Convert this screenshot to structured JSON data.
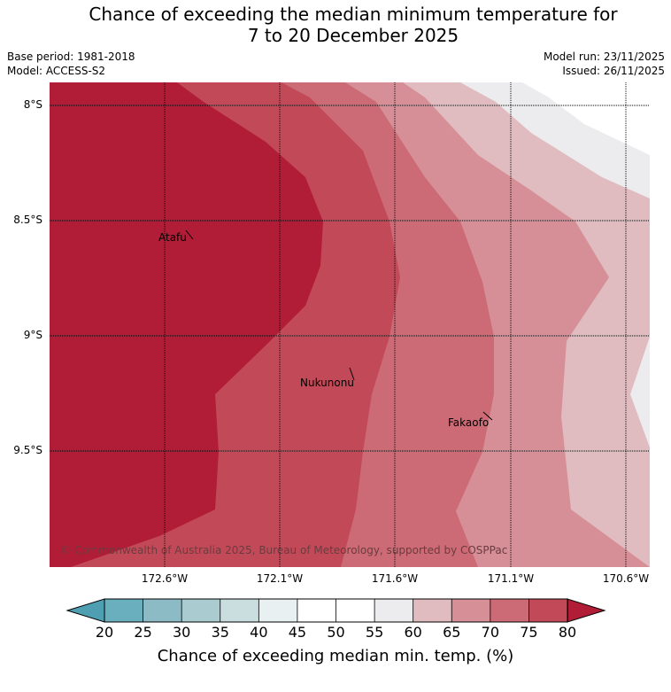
{
  "title": {
    "line1": "Chance of exceeding the median minimum temperature for",
    "line2": "7 to 20 December 2025"
  },
  "meta": {
    "base_period": "Base period: 1981-2018",
    "model": "Model: ACCESS-S2",
    "model_run": "Model run: 23/11/2025",
    "issued": "Issued: 26/11/2025"
  },
  "map": {
    "lat_labels": [
      "8°S",
      "8.5°S",
      "9°S",
      "9.5°S"
    ],
    "lon_labels": [
      "172.6°W",
      "172.1°W",
      "171.6°W",
      "171.1°W",
      "170.6°W"
    ],
    "places": {
      "atafu": "Atafu",
      "nukunonu": "Nukunonu",
      "fakaofo": "Fakaofo"
    },
    "copyright": "© Commonwealth of Australia 2025, Bureau of Meteorology, supported by COSPPac",
    "band_colors": {
      "above80": "#b11d37",
      "75to80": "#c24a58",
      "70to75": "#cc6b75",
      "65to70": "#d68f97",
      "60to65": "#e0bbbf",
      "55to60": "#ecebed",
      "50to55": "#ffffff"
    }
  },
  "colorbar": {
    "ticks": [
      "20",
      "25",
      "30",
      "35",
      "40",
      "45",
      "50",
      "55",
      "60",
      "65",
      "70",
      "75",
      "80"
    ],
    "colors": [
      "#6aafbd",
      "#8cbac5",
      "#aacbd0",
      "#cadddf",
      "#e9f0f2",
      "#ffffff",
      "#ffffff",
      "#ecebed",
      "#e0bbbf",
      "#d68f97",
      "#cc6b75",
      "#c24a58"
    ],
    "under_color": "#4f9fb2",
    "over_color": "#b11d37",
    "label": "Chance of exceeding median min. temp. (%)"
  }
}
